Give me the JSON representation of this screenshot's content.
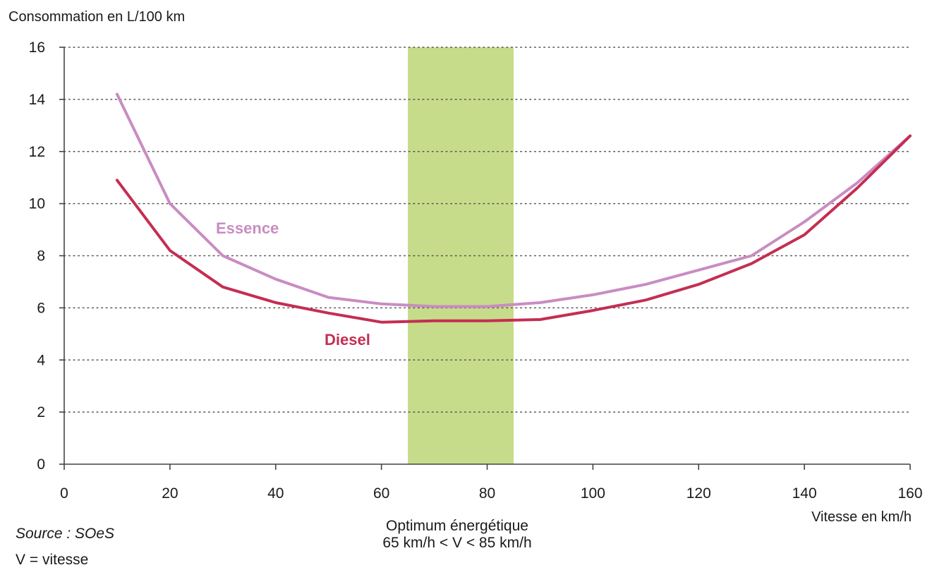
{
  "chart_data": {
    "type": "line",
    "ylabel": "Consommation en L/100 km",
    "xlabel": "Vitesse en km/h",
    "xlim": [
      0,
      160
    ],
    "ylim": [
      0,
      16
    ],
    "x_ticks": [
      0,
      20,
      40,
      60,
      80,
      100,
      120,
      140,
      160
    ],
    "y_ticks": [
      0,
      2,
      4,
      6,
      8,
      10,
      12,
      14,
      16
    ],
    "grid": "horizontal dotted",
    "series": [
      {
        "name": "Essence",
        "color": "#c98cc2",
        "x": [
          10,
          20,
          30,
          40,
          50,
          60,
          70,
          80,
          90,
          100,
          110,
          120,
          130,
          140,
          150,
          160
        ],
        "values": [
          14.2,
          10.0,
          8.0,
          7.1,
          6.4,
          6.15,
          6.05,
          6.05,
          6.2,
          6.5,
          6.9,
          7.45,
          8.0,
          9.3,
          10.8,
          12.6
        ]
      },
      {
        "name": "Diesel",
        "color": "#c42e52",
        "x": [
          10,
          20,
          30,
          40,
          50,
          60,
          70,
          80,
          90,
          100,
          110,
          120,
          130,
          140,
          150,
          160
        ],
        "values": [
          10.9,
          8.2,
          6.8,
          6.2,
          5.8,
          5.45,
          5.5,
          5.5,
          5.55,
          5.9,
          6.3,
          6.9,
          7.7,
          8.8,
          10.6,
          12.6
        ]
      }
    ],
    "annotations": {
      "optimum_band": {
        "from": 65,
        "to": 85,
        "color": "#c6dc8a",
        "label_line1": "Optimum énergétique",
        "label_line2": "65 km/h < V < 85 km/h"
      }
    },
    "source": "Source : SOeS",
    "footnote": "V = vitesse"
  }
}
